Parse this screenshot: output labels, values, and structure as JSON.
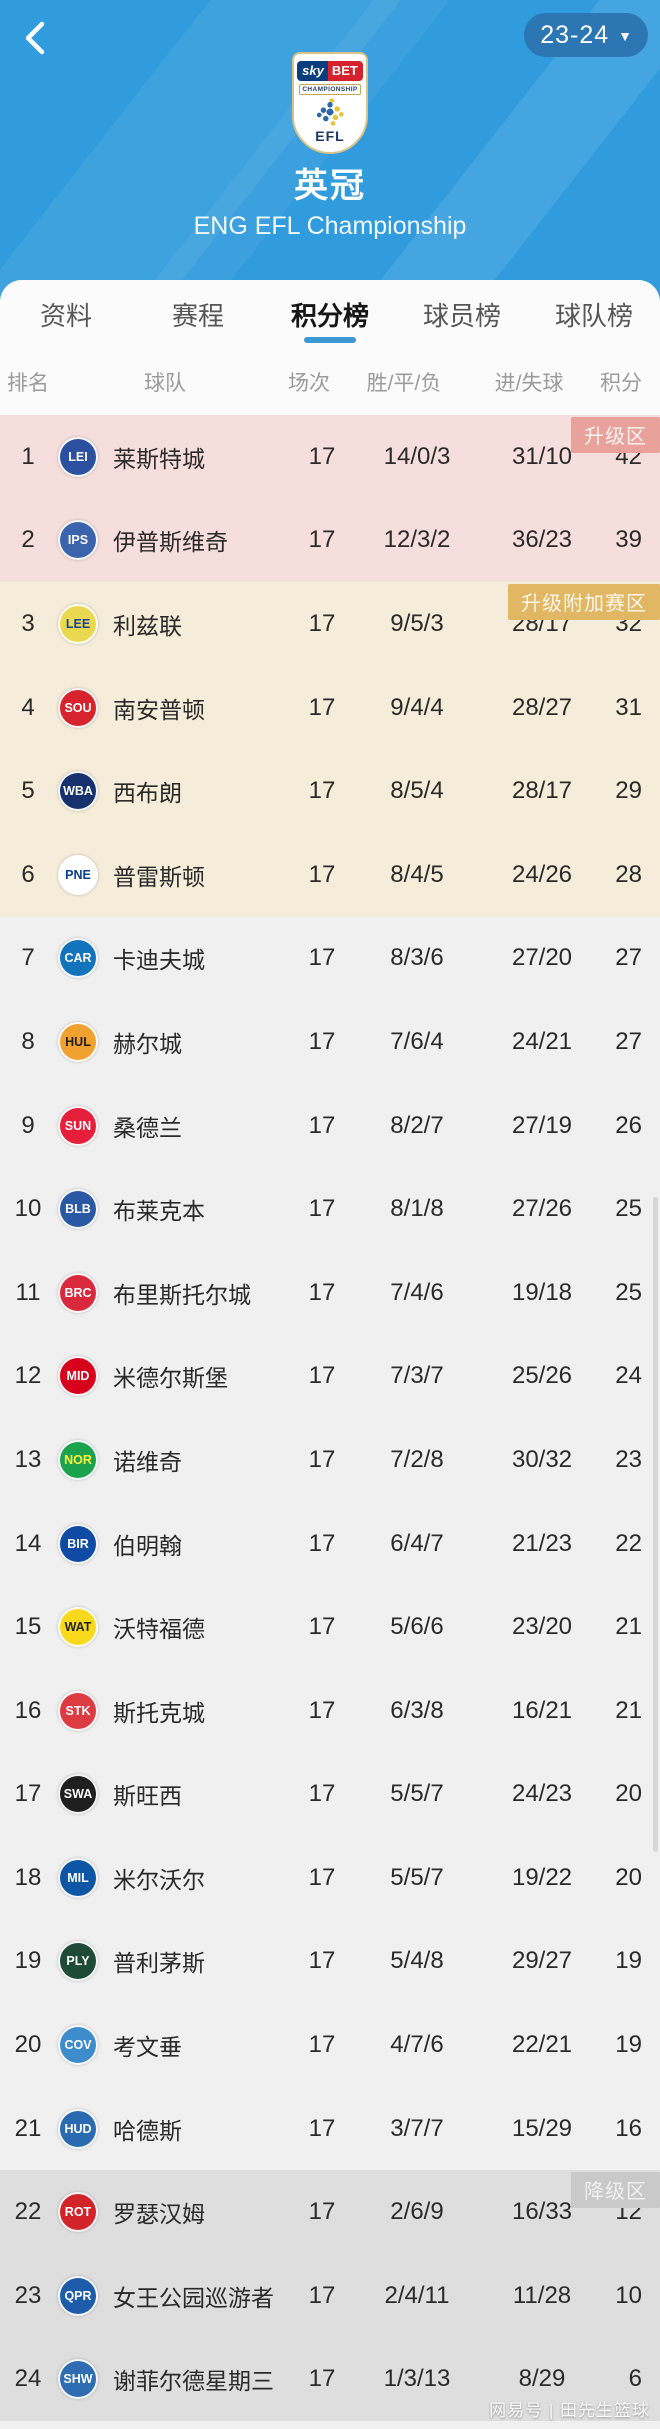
{
  "header": {
    "season_label": "23-24",
    "title": "英冠",
    "subtitle": "ENG EFL Championship",
    "crest": {
      "sky": "sky",
      "bet": "BET",
      "championship": "CHAMPIONSHIP",
      "efl": "EFL"
    }
  },
  "tabs": [
    {
      "label": "资料",
      "active": false
    },
    {
      "label": "赛程",
      "active": false
    },
    {
      "label": "积分榜",
      "active": true
    },
    {
      "label": "球员榜",
      "active": false
    },
    {
      "label": "球队榜",
      "active": false
    }
  ],
  "colors": {
    "header_blue": "#309bdd",
    "season_pill_blue": "#2d76b4",
    "active_tab_underline": "#3d97d5",
    "promotion_zone_bg": "#f6dedc",
    "promotion_badge_bg": "#e9a29b",
    "playoff_zone_bg": "#f5ecd9",
    "playoff_badge_bg": "#e2b763",
    "mid_zone_bg": "#f0f0f0",
    "relegation_zone_bg": "#dedede",
    "relegation_badge_bg": "#c9c9c9"
  },
  "table": {
    "columns": [
      "排名",
      "球队",
      "场次",
      "胜/平/负",
      "进/失球",
      "积分"
    ],
    "zones": [
      {
        "key": "promotion",
        "badge": "升级区",
        "badge_bg": "#e9a29b",
        "badge_fg": "#fdf3f1",
        "bg": "#f6dedc",
        "rows": [
          {
            "rank": "1",
            "team": "莱斯特城",
            "abbr": "LEI",
            "logo_bg": "#2c4fa0",
            "logo_fg": "#ffffff",
            "played": "17",
            "wdl": "14/0/3",
            "goals": "31/10",
            "points": "42"
          },
          {
            "rank": "2",
            "team": "伊普斯维奇",
            "abbr": "IPS",
            "logo_bg": "#3c64ad",
            "logo_fg": "#ffffff",
            "played": "17",
            "wdl": "12/3/2",
            "goals": "36/23",
            "points": "39"
          }
        ]
      },
      {
        "key": "playoff",
        "badge": "升级附加赛区",
        "badge_bg": "#e2b763",
        "badge_fg": "#fdf7ec",
        "bg": "#f5ecd9",
        "rows": [
          {
            "rank": "3",
            "team": "利兹联",
            "abbr": "LEE",
            "logo_bg": "#ead94e",
            "logo_fg": "#1d439b",
            "played": "17",
            "wdl": "9/5/3",
            "goals": "28/17",
            "points": "32"
          },
          {
            "rank": "4",
            "team": "南安普顿",
            "abbr": "SOU",
            "logo_bg": "#d7232d",
            "logo_fg": "#ffffff",
            "played": "17",
            "wdl": "9/4/4",
            "goals": "28/27",
            "points": "31"
          },
          {
            "rank": "5",
            "team": "西布朗",
            "abbr": "WBA",
            "logo_bg": "#16316e",
            "logo_fg": "#ffffff",
            "played": "17",
            "wdl": "8/5/4",
            "goals": "28/17",
            "points": "29"
          },
          {
            "rank": "6",
            "team": "普雷斯顿",
            "abbr": "PNE",
            "logo_bg": "#ffffff",
            "logo_fg": "#0b3e8c",
            "played": "17",
            "wdl": "8/4/5",
            "goals": "24/26",
            "points": "28"
          }
        ]
      },
      {
        "key": "mid",
        "badge": "",
        "badge_bg": "",
        "badge_fg": "",
        "bg": "#f0f0f0",
        "rows": [
          {
            "rank": "7",
            "team": "卡迪夫城",
            "abbr": "CAR",
            "logo_bg": "#1374bd",
            "logo_fg": "#ffffff",
            "played": "17",
            "wdl": "8/3/6",
            "goals": "27/20",
            "points": "27"
          },
          {
            "rank": "8",
            "team": "赫尔城",
            "abbr": "HUL",
            "logo_bg": "#f0a12f",
            "logo_fg": "#221c10",
            "played": "17",
            "wdl": "7/6/4",
            "goals": "24/21",
            "points": "27"
          },
          {
            "rank": "9",
            "team": "桑德兰",
            "abbr": "SUN",
            "logo_bg": "#e51f39",
            "logo_fg": "#ffffff",
            "played": "17",
            "wdl": "8/2/7",
            "goals": "27/19",
            "points": "26"
          },
          {
            "rank": "10",
            "team": "布莱克本",
            "abbr": "BLB",
            "logo_bg": "#2a58a5",
            "logo_fg": "#ffffff",
            "played": "17",
            "wdl": "8/1/8",
            "goals": "27/26",
            "points": "25"
          },
          {
            "rank": "11",
            "team": "布里斯托尔城",
            "abbr": "BRC",
            "logo_bg": "#d82a3c",
            "logo_fg": "#ffffff",
            "played": "17",
            "wdl": "7/4/6",
            "goals": "19/18",
            "points": "25"
          },
          {
            "rank": "12",
            "team": "米德尔斯堡",
            "abbr": "MID",
            "logo_bg": "#d6001c",
            "logo_fg": "#ffffff",
            "played": "17",
            "wdl": "7/3/7",
            "goals": "25/26",
            "points": "24"
          },
          {
            "rank": "13",
            "team": "诺维奇",
            "abbr": "NOR",
            "logo_bg": "#1ca24d",
            "logo_fg": "#fff33c",
            "played": "17",
            "wdl": "7/2/8",
            "goals": "30/32",
            "points": "23"
          },
          {
            "rank": "14",
            "team": "伯明翰",
            "abbr": "BIR",
            "logo_bg": "#0f4aa5",
            "logo_fg": "#ffffff",
            "played": "17",
            "wdl": "6/4/7",
            "goals": "21/23",
            "points": "22"
          },
          {
            "rank": "15",
            "team": "沃特福德",
            "abbr": "WAT",
            "logo_bg": "#f8d91c",
            "logo_fg": "#222222",
            "played": "17",
            "wdl": "5/6/6",
            "goals": "23/20",
            "points": "21"
          },
          {
            "rank": "16",
            "team": "斯托克城",
            "abbr": "STK",
            "logo_bg": "#dd3b42",
            "logo_fg": "#ffffff",
            "played": "17",
            "wdl": "6/3/8",
            "goals": "16/21",
            "points": "21"
          },
          {
            "rank": "17",
            "team": "斯旺西",
            "abbr": "SWA",
            "logo_bg": "#1f1f1f",
            "logo_fg": "#ffffff",
            "played": "17",
            "wdl": "5/5/7",
            "goals": "24/23",
            "points": "20"
          },
          {
            "rank": "18",
            "team": "米尔沃尔",
            "abbr": "MIL",
            "logo_bg": "#0d55a5",
            "logo_fg": "#ffffff",
            "played": "17",
            "wdl": "5/5/7",
            "goals": "19/22",
            "points": "20"
          },
          {
            "rank": "19",
            "team": "普利茅斯",
            "abbr": "PLY",
            "logo_bg": "#1e4b36",
            "logo_fg": "#ffffff",
            "played": "17",
            "wdl": "5/4/8",
            "goals": "29/27",
            "points": "19"
          },
          {
            "rank": "20",
            "team": "考文垂",
            "abbr": "COV",
            "logo_bg": "#3f8ccc",
            "logo_fg": "#ffffff",
            "played": "17",
            "wdl": "4/7/6",
            "goals": "22/21",
            "points": "19"
          },
          {
            "rank": "21",
            "team": "哈德斯",
            "abbr": "HUD",
            "logo_bg": "#2a6ab0",
            "logo_fg": "#ffffff",
            "played": "17",
            "wdl": "3/7/7",
            "goals": "15/29",
            "points": "16"
          }
        ]
      },
      {
        "key": "relegation",
        "badge": "降级区",
        "badge_bg": "#c9c9c9",
        "badge_fg": "#f0f0f0",
        "bg": "#dedede",
        "rows": [
          {
            "rank": "22",
            "team": "罗瑟汉姆",
            "abbr": "ROT",
            "logo_bg": "#d2232a",
            "logo_fg": "#ffffff",
            "played": "17",
            "wdl": "2/6/9",
            "goals": "16/33",
            "points": "12"
          },
          {
            "rank": "23",
            "team": "女王公园巡游者",
            "abbr": "QPR",
            "logo_bg": "#1d5cab",
            "logo_fg": "#ffffff",
            "played": "17",
            "wdl": "2/4/11",
            "goals": "11/28",
            "points": "10"
          },
          {
            "rank": "24",
            "team": "谢菲尔德星期三",
            "abbr": "SHW",
            "logo_bg": "#2e6db2",
            "logo_fg": "#ffffff",
            "played": "17",
            "wdl": "1/3/13",
            "goals": "8/29",
            "points": "6"
          }
        ]
      }
    ]
  },
  "watermark": "网易号 | 田先生篮球"
}
